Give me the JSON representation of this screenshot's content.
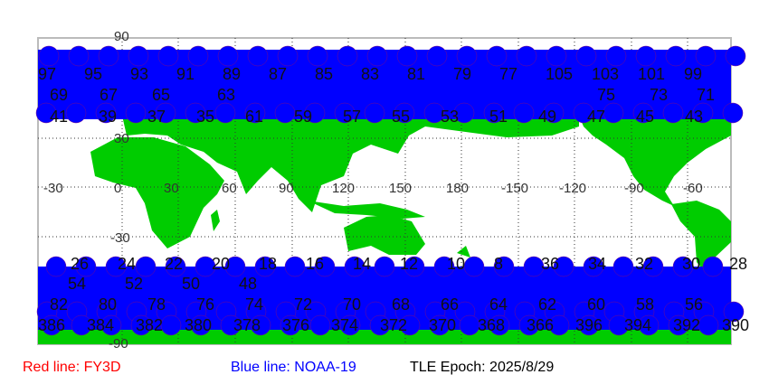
{
  "colors": {
    "land": "#00cc00",
    "track_blue": "#0000ff",
    "track_red": "#ff0000",
    "background": "#ffffff"
  },
  "axes": {
    "lon_labels": [
      "-30",
      "0",
      "30",
      "60",
      "90",
      "120",
      "150",
      "180",
      "-150",
      "-120",
      "-90",
      "-60"
    ],
    "lat_labels": [
      "90",
      "30",
      "-30",
      "-90"
    ]
  },
  "track_labels": {
    "north_row_1": [
      "97",
      "95",
      "93",
      "91",
      "89",
      "87",
      "85",
      "83",
      "81",
      "79",
      "77",
      "105",
      "103",
      "101",
      "99"
    ],
    "north_row_2": [
      "69",
      "67",
      "65",
      "63",
      "75",
      "73",
      "71"
    ],
    "north_row_3": [
      "41",
      "39",
      "37",
      "35",
      "61",
      "59",
      "57",
      "55",
      "53",
      "51",
      "49",
      "47",
      "45",
      "43"
    ],
    "south_row_1": [
      "26",
      "24",
      "22",
      "20",
      "18",
      "16",
      "14",
      "12",
      "10",
      "8",
      "36",
      "34",
      "32",
      "30",
      "28"
    ],
    "south_row_2": [
      "54",
      "52",
      "50",
      "48"
    ],
    "south_row_3": [
      "82",
      "80",
      "78",
      "76",
      "74",
      "72",
      "70",
      "68",
      "66",
      "64",
      "62",
      "60",
      "58",
      "56"
    ],
    "south_row_4": [
      "386",
      "384",
      "382",
      "380",
      "378",
      "376",
      "374",
      "372",
      "370",
      "368",
      "366",
      "396",
      "394",
      "392",
      "390"
    ]
  },
  "legend": {
    "red_line": "Red line: FY3D",
    "blue_line": "Blue line: NOAA-19",
    "epoch": "TLE Epoch: 2025/8/29"
  }
}
